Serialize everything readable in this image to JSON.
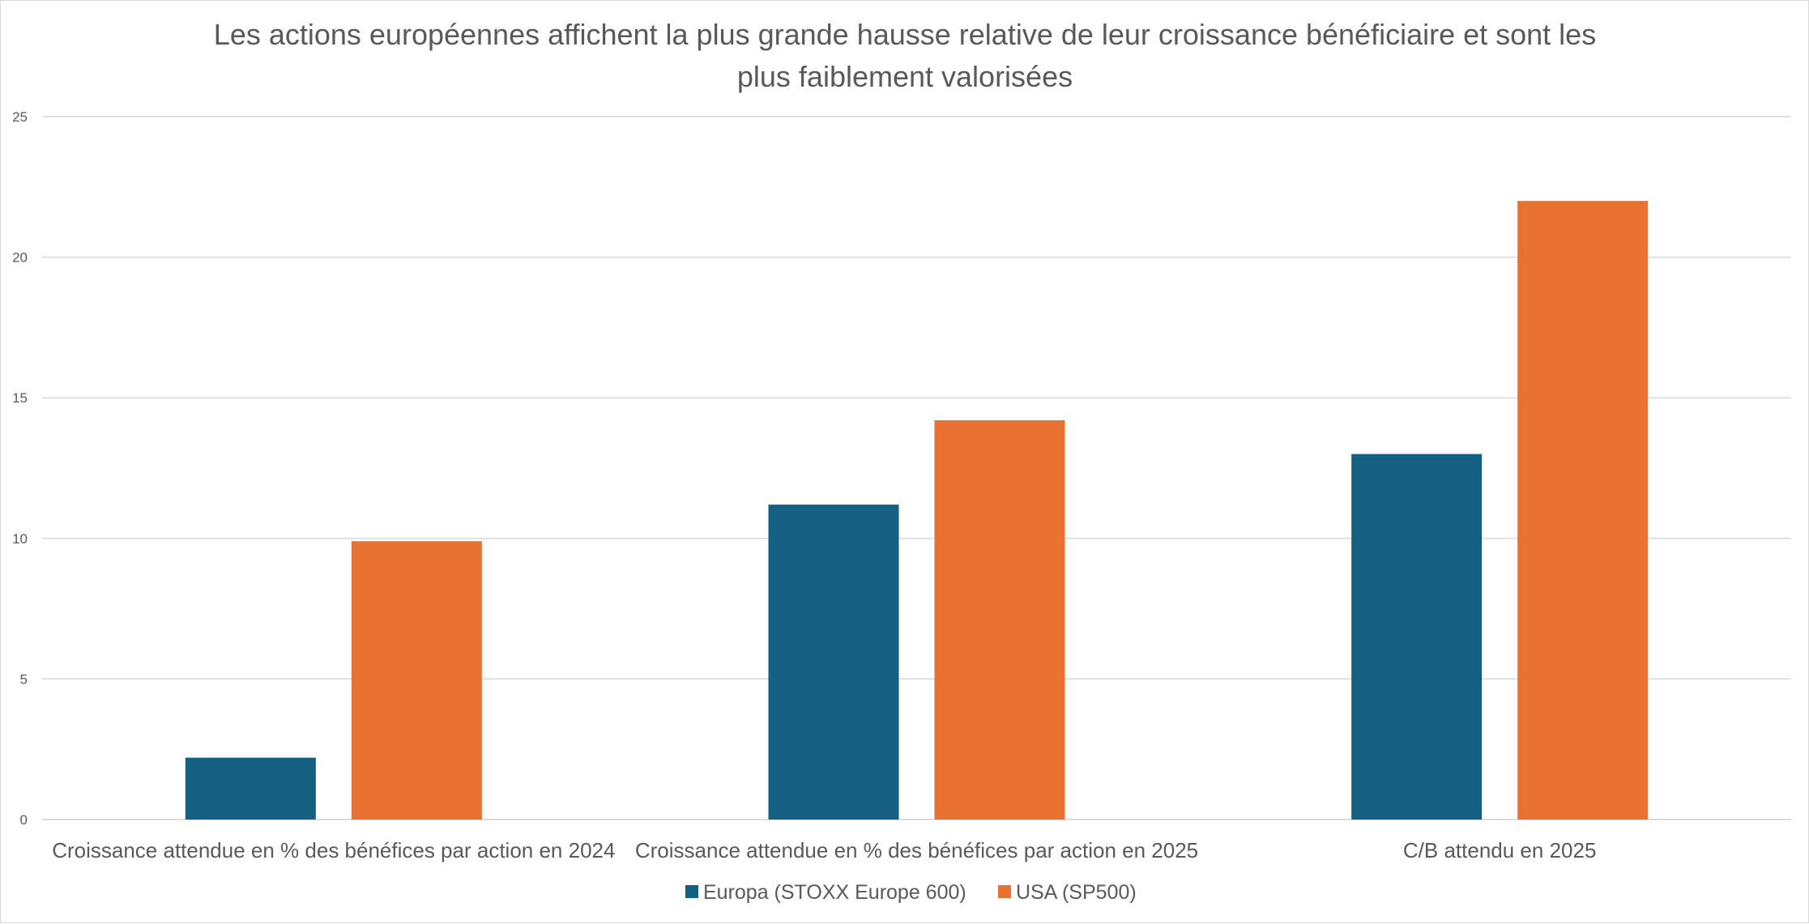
{
  "chart_data": {
    "type": "bar",
    "title": "Les actions européennes affichent la plus grande hausse relative de leur croissance bénéficiaire et sont les plus faiblement valorisées",
    "title_lines": [
      "Les actions européennes affichent la plus grande hausse relative de leur croissance bénéficiaire et sont les",
      "plus faiblement valorisées"
    ],
    "categories": [
      "Croissance attendue en % des bénéfices par action en 2024",
      "Croissance attendue en % des bénéfices par action en 2025",
      "C/B attendu en 2025"
    ],
    "series": [
      {
        "name": "Europa (STOXX Europe 600)",
        "color": "#156082",
        "values": [
          2.2,
          11.2,
          13.0
        ]
      },
      {
        "name": "USA (SP500)",
        "color": "#E97132",
        "values": [
          9.9,
          14.2,
          22.0
        ]
      }
    ],
    "y_ticks": [
      "0",
      "5",
      "10",
      "15",
      "20",
      "25"
    ],
    "ylim": [
      0,
      25
    ],
    "grid": true,
    "legend_position": "bottom",
    "xlabel": "",
    "ylabel": ""
  }
}
